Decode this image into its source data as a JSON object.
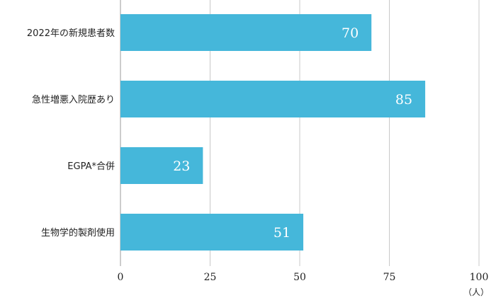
{
  "chart_data": {
    "type": "bar",
    "orientation": "horizontal",
    "categories": [
      "2022年の新規患者数",
      "急性増悪入院歴あり",
      "EGPA*合併",
      "生物学的製剤使用"
    ],
    "values": [
      70,
      85,
      23,
      51
    ],
    "data_labels": [
      "70",
      "85",
      "23",
      "51"
    ],
    "xlim": [
      0,
      100
    ],
    "x_ticks": [
      0,
      25,
      50,
      75,
      100
    ],
    "x_tick_labels": [
      "0",
      "25",
      "50",
      "75",
      "100"
    ],
    "x_unit": "（人）",
    "grid": "vertical",
    "bar_color": "#45b7da",
    "label_color": "#ffffff"
  }
}
